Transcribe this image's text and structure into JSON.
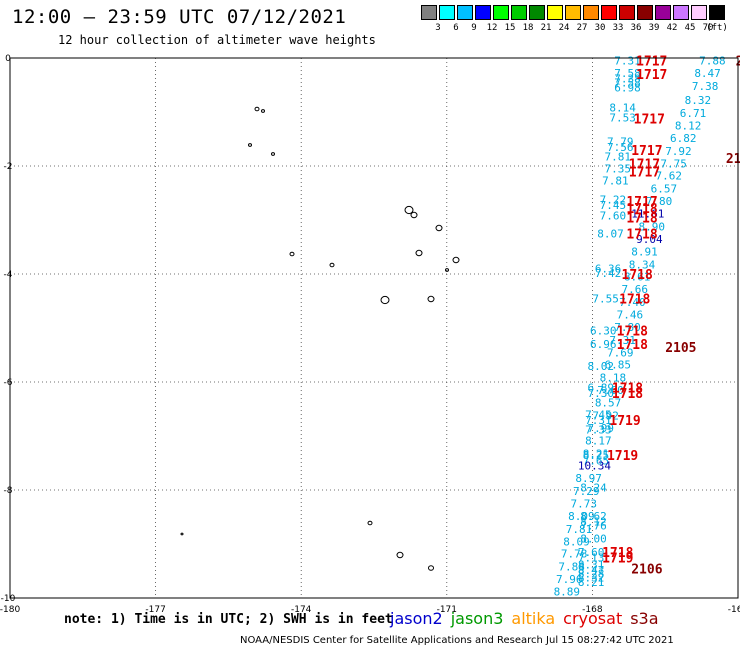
{
  "header": {
    "title": "12:00 – 23:59 UTC 07/12/2021",
    "subtitle": "12 hour collection of altimeter wave heights"
  },
  "legend": {
    "unit": "(ft)",
    "bins": [
      {
        "color": "#808080",
        "label": "3"
      },
      {
        "color": "#00ffff",
        "label": "6"
      },
      {
        "color": "#00c0ff",
        "label": "9"
      },
      {
        "color": "#0000ff",
        "label": "12"
      },
      {
        "color": "#00ff00",
        "label": "15"
      },
      {
        "color": "#00cc00",
        "label": "18"
      },
      {
        "color": "#008800",
        "label": "21"
      },
      {
        "color": "#ffff00",
        "label": "24"
      },
      {
        "color": "#ffbb00",
        "label": "27"
      },
      {
        "color": "#ff8800",
        "label": "30"
      },
      {
        "color": "#ff0000",
        "label": "33"
      },
      {
        "color": "#cc0000",
        "label": "36"
      },
      {
        "color": "#880000",
        "label": "39"
      },
      {
        "color": "#990099",
        "label": "42"
      },
      {
        "color": "#cc77ff",
        "label": "45"
      },
      {
        "color": "#ffccff",
        "label": "70"
      },
      {
        "color": "#000000",
        "label": ""
      }
    ]
  },
  "axes": {
    "lon_labels": [
      "-180",
      "-177",
      "-174",
      "-171",
      "-168",
      "-165"
    ],
    "lat_labels": [
      "0",
      "-2",
      "-4",
      "-6",
      "-8",
      "-10"
    ],
    "lon_range": [
      -180,
      -165
    ],
    "lat_range": [
      -10,
      0
    ]
  },
  "colors": {
    "light": "#00aadd",
    "dark": "#0000aa",
    "time_red": "#dd0000",
    "time_dark": "#880000"
  },
  "track_values": [
    {
      "lon": -167.55,
      "lat": -0.05,
      "v": "7.31"
    },
    {
      "lon": -167.55,
      "lat": -0.28,
      "v": "7.58"
    },
    {
      "lon": -167.55,
      "lat": -0.38,
      "v": "7.38"
    },
    {
      "lon": -167.55,
      "lat": -0.45,
      "v": "7.58"
    },
    {
      "lon": -167.55,
      "lat": -0.55,
      "v": "6.98"
    },
    {
      "lon": -167.65,
      "lat": -0.92,
      "v": "8.14"
    },
    {
      "lon": -167.65,
      "lat": -1.1,
      "v": "7.53"
    },
    {
      "lon": -167.7,
      "lat": -1.55,
      "v": "7.79"
    },
    {
      "lon": -167.7,
      "lat": -1.65,
      "v": "7.56"
    },
    {
      "lon": -167.75,
      "lat": -1.82,
      "v": "7.81"
    },
    {
      "lon": -167.75,
      "lat": -2.05,
      "v": "7.35"
    },
    {
      "lon": -167.8,
      "lat": -2.27,
      "v": "7.81"
    },
    {
      "lon": -167.85,
      "lat": -2.62,
      "v": "7.22"
    },
    {
      "lon": -167.85,
      "lat": -2.72,
      "v": "7.45"
    },
    {
      "lon": -167.85,
      "lat": -2.92,
      "v": "7.60"
    },
    {
      "lon": -167.9,
      "lat": -3.25,
      "v": "8.07"
    },
    {
      "lon": -167.95,
      "lat": -3.9,
      "v": "6.36"
    },
    {
      "lon": -167.95,
      "lat": -3.98,
      "v": "7.42"
    },
    {
      "lon": -168.0,
      "lat": -4.45,
      "v": "7.55"
    },
    {
      "lon": -168.05,
      "lat": -5.05,
      "v": "6.30"
    },
    {
      "lon": -168.05,
      "lat": -5.3,
      "v": "6.96"
    },
    {
      "lon": -168.1,
      "lat": -5.7,
      "v": "8.02"
    },
    {
      "lon": -168.1,
      "lat": -6.1,
      "v": "6.89"
    },
    {
      "lon": -168.1,
      "lat": -6.2,
      "v": "7.30"
    },
    {
      "lon": -168.15,
      "lat": -6.6,
      "v": "7.45"
    },
    {
      "lon": -168.15,
      "lat": -6.7,
      "v": "7.31"
    },
    {
      "lon": -168.15,
      "lat": -6.88,
      "v": "7.33"
    },
    {
      "lon": -168.2,
      "lat": -7.35,
      "v": "8.25"
    },
    {
      "lon": -168.2,
      "lat": -7.45,
      "v": "7.65"
    },
    {
      "lon": -168.25,
      "lat": -7.95,
      "v": "8.24"
    },
    {
      "lon": -168.25,
      "lat": -8.48,
      "v": "8.62"
    },
    {
      "lon": -168.25,
      "lat": -8.58,
      "v": "8.12"
    },
    {
      "lon": -168.25,
      "lat": -8.66,
      "v": "7.76"
    },
    {
      "lon": -168.25,
      "lat": -8.9,
      "v": "8.00"
    },
    {
      "lon": -168.3,
      "lat": -9.15,
      "v": "7.60"
    },
    {
      "lon": -168.3,
      "lat": -9.25,
      "v": "7.13"
    },
    {
      "lon": -168.3,
      "lat": -9.38,
      "v": "8.31"
    },
    {
      "lon": -168.3,
      "lat": -9.48,
      "v": "8.47"
    },
    {
      "lon": -168.3,
      "lat": -9.55,
      "v": "8.28"
    },
    {
      "lon": -168.3,
      "lat": -9.62,
      "v": "8.32"
    },
    {
      "lon": -168.3,
      "lat": -9.7,
      "v": "8.21"
    },
    {
      "lon": -165.8,
      "lat": -0.05,
      "v": "7.88"
    },
    {
      "lon": -165.9,
      "lat": -0.28,
      "v": "8.47"
    },
    {
      "lon": -165.95,
      "lat": -0.52,
      "v": "7.38"
    },
    {
      "lon": -166.1,
      "lat": -0.78,
      "v": "8.32"
    },
    {
      "lon": -166.2,
      "lat": -1.02,
      "v": "6.71"
    },
    {
      "lon": -166.3,
      "lat": -1.25,
      "v": "8.12"
    },
    {
      "lon": -166.4,
      "lat": -1.48,
      "v": "6.82"
    },
    {
      "lon": -166.5,
      "lat": -1.72,
      "v": "7.92"
    },
    {
      "lon": -166.6,
      "lat": -1.95,
      "v": "7.75"
    },
    {
      "lon": -166.7,
      "lat": -2.18,
      "v": "7.62"
    },
    {
      "lon": -166.8,
      "lat": -2.42,
      "v": "6.57"
    },
    {
      "lon": -166.9,
      "lat": -2.65,
      "v": "7.80"
    },
    {
      "lon": -167.2,
      "lat": -2.88,
      "v": "11.61",
      "dark": true
    },
    {
      "lon": -167.05,
      "lat": -3.12,
      "v": "8.90"
    },
    {
      "lon": -167.1,
      "lat": -3.35,
      "v": "9.04",
      "dark": true
    },
    {
      "lon": -167.2,
      "lat": -3.58,
      "v": "8.91"
    },
    {
      "lon": -167.25,
      "lat": -3.82,
      "v": "8.34"
    },
    {
      "lon": -167.35,
      "lat": -4.05,
      "v": "8.61"
    },
    {
      "lon": -167.4,
      "lat": -4.28,
      "v": "7.66"
    },
    {
      "lon": -167.45,
      "lat": -4.52,
      "v": "7.40"
    },
    {
      "lon": -167.5,
      "lat": -4.75,
      "v": "7.46"
    },
    {
      "lon": -167.55,
      "lat": -4.98,
      "v": "7.80"
    },
    {
      "lon": -167.65,
      "lat": -5.22,
      "v": "7.31"
    },
    {
      "lon": -167.7,
      "lat": -5.45,
      "v": "7.69"
    },
    {
      "lon": -167.75,
      "lat": -5.68,
      "v": "6.85"
    },
    {
      "lon": -167.85,
      "lat": -5.92,
      "v": "8.18"
    },
    {
      "lon": -167.9,
      "lat": -6.15,
      "v": "7.60"
    },
    {
      "lon": -167.95,
      "lat": -6.38,
      "v": "8.57"
    },
    {
      "lon": -168.0,
      "lat": -6.62,
      "v": "7.92"
    },
    {
      "lon": -168.1,
      "lat": -6.85,
      "v": "7.99"
    },
    {
      "lon": -168.15,
      "lat": -7.08,
      "v": "8.17"
    },
    {
      "lon": -168.2,
      "lat": -7.32,
      "v": "8.21"
    },
    {
      "lon": -168.3,
      "lat": -7.55,
      "v": "10.34",
      "dark": true
    },
    {
      "lon": -168.35,
      "lat": -7.78,
      "v": "8.97"
    },
    {
      "lon": -168.4,
      "lat": -8.02,
      "v": "7.29"
    },
    {
      "lon": -168.45,
      "lat": -8.25,
      "v": "7.73"
    },
    {
      "lon": -168.5,
      "lat": -8.48,
      "v": "8.09"
    },
    {
      "lon": -168.55,
      "lat": -8.72,
      "v": "7.81"
    },
    {
      "lon": -168.6,
      "lat": -8.95,
      "v": "8.09"
    },
    {
      "lon": -168.65,
      "lat": -9.18,
      "v": "7.78"
    },
    {
      "lon": -168.7,
      "lat": -9.42,
      "v": "7.88"
    },
    {
      "lon": -168.75,
      "lat": -9.65,
      "v": "7.96"
    },
    {
      "lon": -168.8,
      "lat": -9.88,
      "v": "8.89"
    }
  ],
  "time_labels": [
    {
      "lon": -167.1,
      "lat": -0.05,
      "v": "1717"
    },
    {
      "lon": -167.1,
      "lat": -0.3,
      "v": "1717"
    },
    {
      "lon": -167.15,
      "lat": -1.12,
      "v": "1717"
    },
    {
      "lon": -167.2,
      "lat": -1.7,
      "v": "1717"
    },
    {
      "lon": -167.25,
      "lat": -1.95,
      "v": "1717"
    },
    {
      "lon": -167.25,
      "lat": -2.1,
      "v": "1717"
    },
    {
      "lon": -167.3,
      "lat": -2.65,
      "v": "1717"
    },
    {
      "lon": -167.3,
      "lat": -2.78,
      "v": "1718"
    },
    {
      "lon": -167.3,
      "lat": -2.95,
      "v": "1718"
    },
    {
      "lon": -167.3,
      "lat": -3.25,
      "v": "1718"
    },
    {
      "lon": -167.4,
      "lat": -4.0,
      "v": "1718"
    },
    {
      "lon": -167.45,
      "lat": -4.45,
      "v": "1718"
    },
    {
      "lon": -167.5,
      "lat": -5.05,
      "v": "1718"
    },
    {
      "lon": -167.5,
      "lat": -5.3,
      "v": "1718"
    },
    {
      "lon": -167.6,
      "lat": -6.1,
      "v": "1718"
    },
    {
      "lon": -167.6,
      "lat": -6.2,
      "v": "1718"
    },
    {
      "lon": -167.65,
      "lat": -6.7,
      "v": "1719"
    },
    {
      "lon": -167.7,
      "lat": -7.35,
      "v": "1719"
    },
    {
      "lon": -167.8,
      "lat": -9.15,
      "v": "1718"
    },
    {
      "lon": -167.8,
      "lat": -9.25,
      "v": "1719"
    }
  ],
  "s3a_labels": [
    {
      "lon": -165.05,
      "lat": -0.05,
      "v": "2"
    },
    {
      "lon": -165.25,
      "lat": -1.85,
      "v": "210"
    },
    {
      "lon": -166.5,
      "lat": -5.35,
      "v": "2105"
    },
    {
      "lon": -167.2,
      "lat": -9.45,
      "v": "2106"
    }
  ],
  "notes": {
    "text": "note: 1) Time is in UTC; 2) SWH is in feet"
  },
  "satellites": [
    {
      "name": "jason2",
      "color": "#0000cc"
    },
    {
      "name": "jason3",
      "color": "#009900"
    },
    {
      "name": "altika",
      "color": "#ff9900"
    },
    {
      "name": "cryosat",
      "color": "#dd0000"
    },
    {
      "name": "s3a",
      "color": "#880000"
    }
  ],
  "credit": "NOAA/NESDIS Center for Satellite Applications and Research   Jul 15 08:27:42 UTC 2021"
}
